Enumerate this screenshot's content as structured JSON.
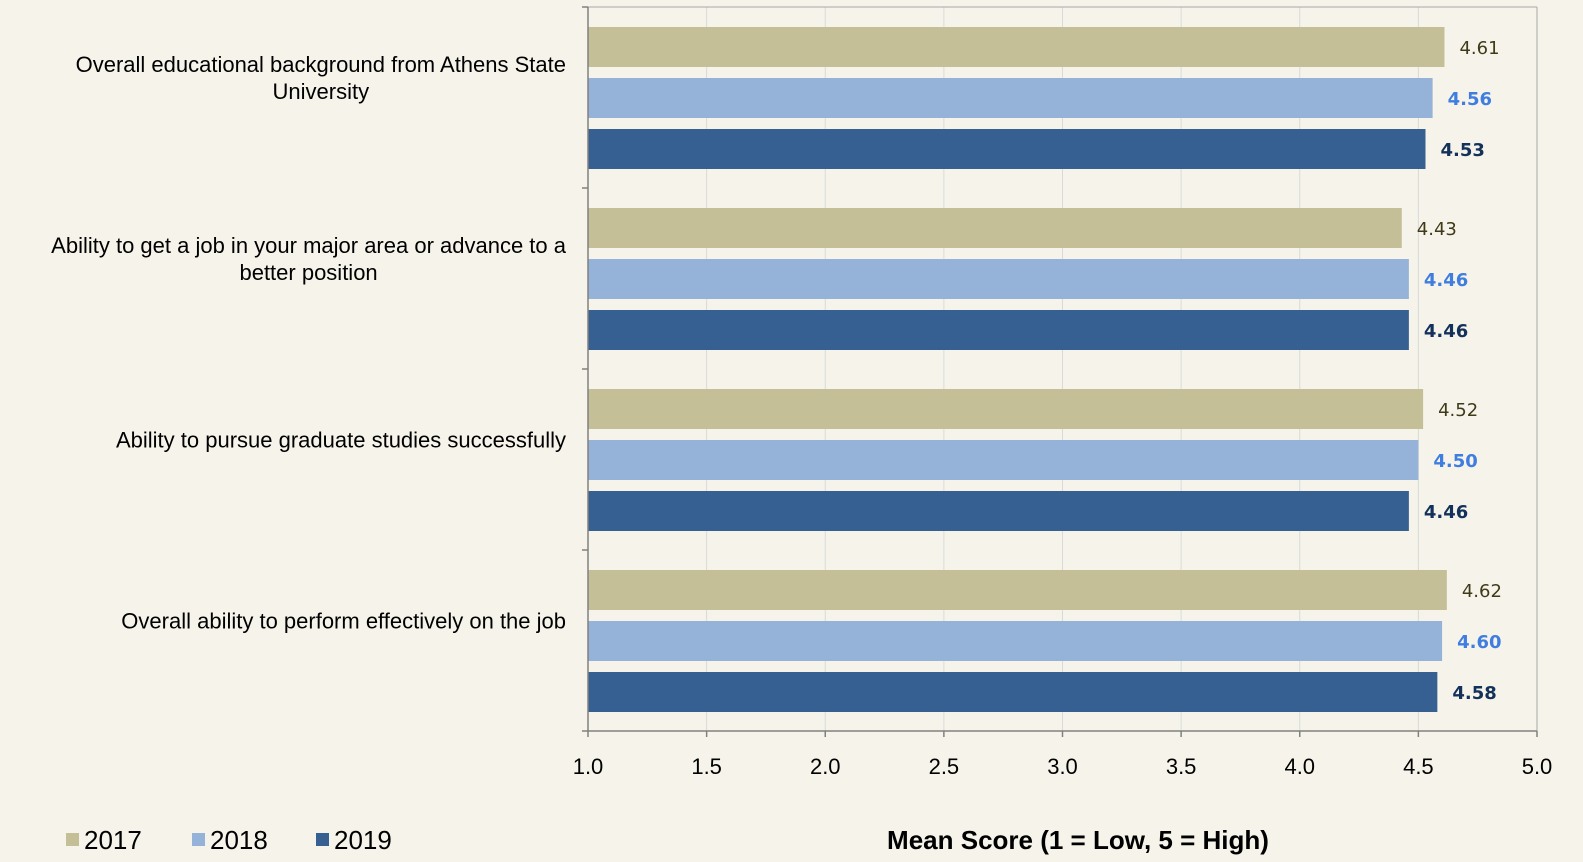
{
  "chart_data": {
    "type": "bar",
    "orientation": "horizontal",
    "categories": [
      [
        "Overall educational background from Athens State",
        "University"
      ],
      [
        "Ability to get a job in your major area or advance to a",
        "better position"
      ],
      [
        "Ability to pursue graduate studies successfully"
      ],
      [
        "Overall ability to perform effectively on the job"
      ]
    ],
    "series": [
      {
        "name": "2017",
        "color": "#c5bf98",
        "label_color": "#3f3b18",
        "label_bold": false,
        "values": [
          4.61,
          4.43,
          4.52,
          4.62
        ],
        "labels": [
          "4.61",
          "4.43",
          "4.52",
          "4.62"
        ]
      },
      {
        "name": "2018",
        "color": "#95b3d8",
        "label_color": "#3f7de0",
        "label_bold": true,
        "values": [
          4.56,
          4.46,
          4.5,
          4.6
        ],
        "labels": [
          "4.56",
          "4.46",
          "4.50",
          "4.60"
        ]
      },
      {
        "name": "2019",
        "color": "#366092",
        "label_color": "#13315a",
        "label_bold": true,
        "values": [
          4.53,
          4.46,
          4.46,
          4.58
        ],
        "labels": [
          "4.53",
          "4.46",
          "4.46",
          "4.58"
        ]
      }
    ],
    "xlim": [
      1.0,
      5.0
    ],
    "xticks": [
      "1.0",
      "1.5",
      "2.0",
      "2.5",
      "3.0",
      "3.5",
      "4.0",
      "4.5",
      "5.0"
    ],
    "xlabel": "Mean Score (1 = Low, 5 = High)",
    "title": "",
    "grid": "vertical",
    "legend_position": "bottom-left"
  }
}
